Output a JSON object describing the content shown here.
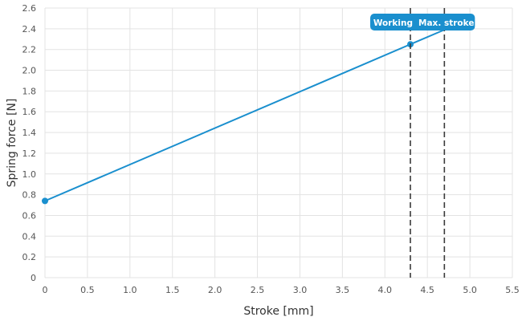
{
  "chart_data": {
    "type": "line",
    "xlabel": "Stroke [mm]",
    "ylabel": "Spring force [N]",
    "xlim": [
      0,
      5.5
    ],
    "ylim": [
      0,
      2.6
    ],
    "x_ticks": [
      0,
      0.5,
      1.0,
      1.5,
      2.0,
      2.5,
      3.0,
      3.5,
      4.0,
      4.5,
      5.0,
      5.5
    ],
    "x_tick_labels": [
      "0",
      "0.5",
      "1.0",
      "1.5",
      "2.0",
      "2.5",
      "3.0",
      "3.5",
      "4.0",
      "4.5",
      "5.0",
      "5.5"
    ],
    "y_ticks": [
      0,
      0.2,
      0.4,
      0.6,
      0.8,
      1.0,
      1.2,
      1.4,
      1.6,
      1.8,
      2.0,
      2.2,
      2.4,
      2.6
    ],
    "y_tick_labels": [
      "0",
      "0.2",
      "0.4",
      "0.6",
      "0.8",
      "1.0",
      "1.2",
      "1.4",
      "1.6",
      "1.8",
      "2.0",
      "2.2",
      "2.4",
      "2.6"
    ],
    "grid": true,
    "series": [
      {
        "x": [
          0,
          4.3,
          4.7
        ],
        "y": [
          0.74,
          2.25,
          2.39
        ],
        "color": "#1a8fce"
      }
    ],
    "points": [
      {
        "x": 0,
        "y": 0.74
      },
      {
        "x": 4.3,
        "y": 2.25
      }
    ],
    "markers": [
      {
        "x": 4.3,
        "label": "Working"
      },
      {
        "x": 4.7,
        "label": "Max. stroke"
      }
    ],
    "colors": {
      "accent": "#1a8fce",
      "marker_line": "#3a3a3a",
      "grid": "#e3e3e3"
    }
  }
}
